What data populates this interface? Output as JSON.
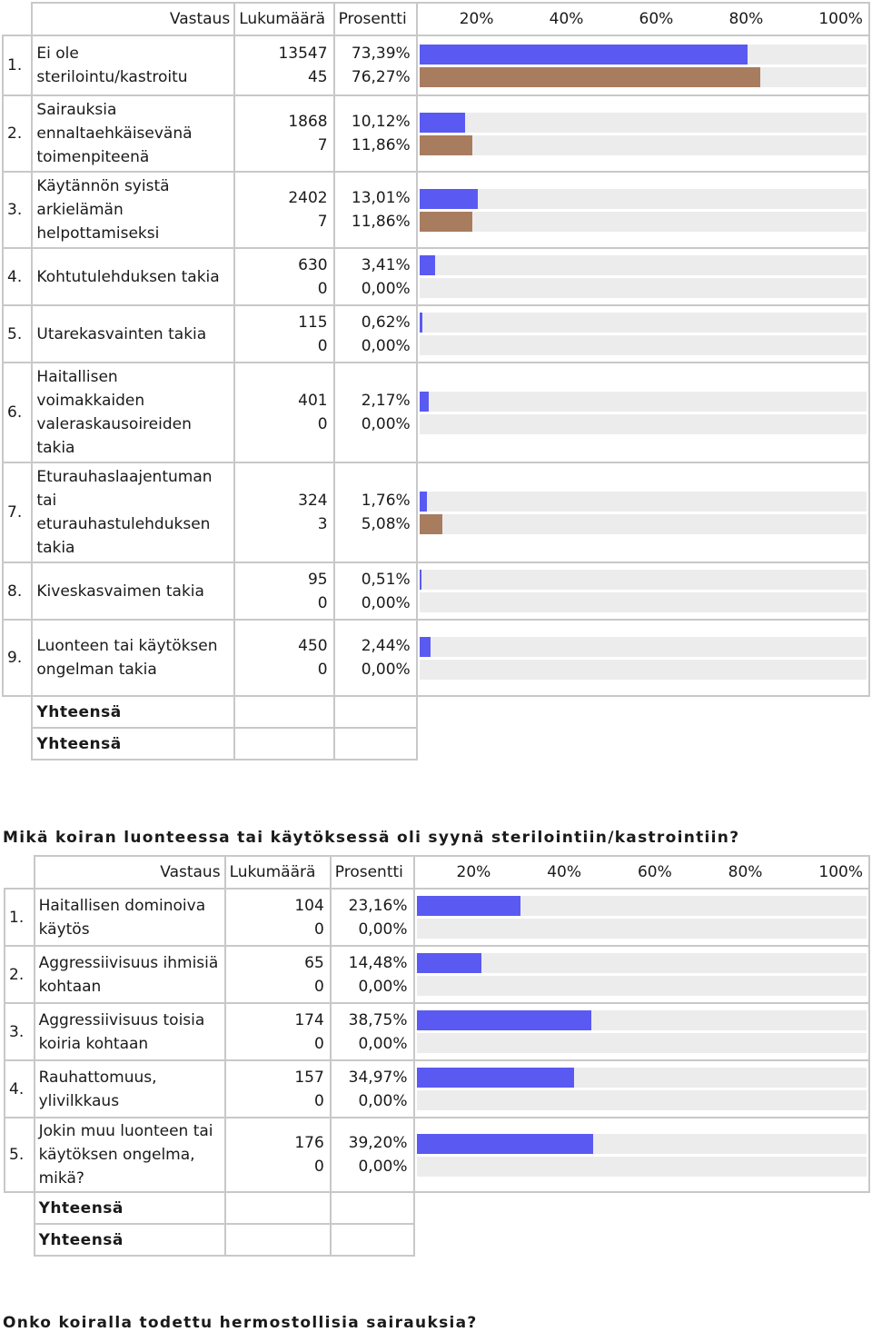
{
  "colors": {
    "series_a": "#5a5af2",
    "series_b": "#a87c5f",
    "track": "#ececec",
    "border": "#c8c8c8"
  },
  "header": {
    "answer": "Vastaus",
    "count": "Lukumäärä",
    "percent": "Prosentti",
    "scale": [
      "20%",
      "40%",
      "60%",
      "80%",
      "100%"
    ]
  },
  "table1": {
    "rows": [
      {
        "num": "1.",
        "label": "Ei ole sterilointu/kastroitu",
        "c1": "13547",
        "p1": "73,39%",
        "c2": "45",
        "p2": "76,27%",
        "v1": 73.39,
        "v2": 76.27
      },
      {
        "num": "2.",
        "label": "Sairauksia ennaltaehkäisevänä toimenpiteenä",
        "c1": "1868",
        "p1": "10,12%",
        "c2": "7",
        "p2": "11,86%",
        "v1": 10.12,
        "v2": 11.86
      },
      {
        "num": "3.",
        "label": "Käytännön syistä arkielämän helpottamiseksi",
        "c1": "2402",
        "p1": "13,01%",
        "c2": "7",
        "p2": "11,86%",
        "v1": 13.01,
        "v2": 11.86
      },
      {
        "num": "4.",
        "label": "Kohtutulehduksen takia",
        "c1": "630",
        "p1": "3,41%",
        "c2": "0",
        "p2": "0,00%",
        "v1": 3.41,
        "v2": 0
      },
      {
        "num": "5.",
        "label": "Utarekasvainten takia",
        "c1": "115",
        "p1": "0,62%",
        "c2": "0",
        "p2": "0,00%",
        "v1": 0.62,
        "v2": 0
      },
      {
        "num": "6.",
        "label": "Haitallisen voimakkaiden valeraskausoireiden takia",
        "c1": "401",
        "p1": "2,17%",
        "c2": "0",
        "p2": "0,00%",
        "v1": 2.17,
        "v2": 0
      },
      {
        "num": "7.",
        "label": "Eturauhaslaajentuman tai eturauhastulehduksen takia",
        "c1": "324",
        "p1": "1,76%",
        "c2": "3",
        "p2": "5,08%",
        "v1": 1.76,
        "v2": 5.08
      },
      {
        "num": "8.",
        "label": "Kiveskasvaimen takia",
        "c1": "95",
        "p1": "0,51%",
        "c2": "0",
        "p2": "0,00%",
        "v1": 0.51,
        "v2": 0
      },
      {
        "num": "9.",
        "label": "Luonteen tai käytöksen ongelman takia",
        "c1": "450",
        "p1": "2,44%",
        "c2": "0",
        "p2": "0,00%",
        "v1": 2.44,
        "v2": 0
      }
    ],
    "totals": [
      "Yhteensä",
      "Yhteensä"
    ]
  },
  "question2": "Mikä koiran luonteessa tai käytöksessä oli syynä sterilointiin/kastrointiin?",
  "table2": {
    "rows": [
      {
        "num": "1.",
        "label": "Haitallisen dominoiva käytös",
        "c1": "104",
        "p1": "23,16%",
        "c2": "0",
        "p2": "0,00%",
        "v1": 23.16,
        "v2": 0
      },
      {
        "num": "2.",
        "label": "Aggressiivisuus ihmisiä kohtaan",
        "c1": "65",
        "p1": "14,48%",
        "c2": "0",
        "p2": "0,00%",
        "v1": 14.48,
        "v2": 0
      },
      {
        "num": "3.",
        "label": "Aggressiivisuus toisia koiria kohtaan",
        "c1": "174",
        "p1": "38,75%",
        "c2": "0",
        "p2": "0,00%",
        "v1": 38.75,
        "v2": 0
      },
      {
        "num": "4.",
        "label": "Rauhattomuus, ylivilkkaus",
        "c1": "157",
        "p1": "34,97%",
        "c2": "0",
        "p2": "0,00%",
        "v1": 34.97,
        "v2": 0
      },
      {
        "num": "5.",
        "label": "Jokin muu luonteen tai käytöksen ongelma, mikä?",
        "c1": "176",
        "p1": "39,20%",
        "c2": "0",
        "p2": "0,00%",
        "v1": 39.2,
        "v2": 0
      }
    ],
    "totals": [
      "Yhteensä",
      "Yhteensä"
    ]
  },
  "question3": "Onko koiralla todettu hermostollisia sairauksia?"
}
